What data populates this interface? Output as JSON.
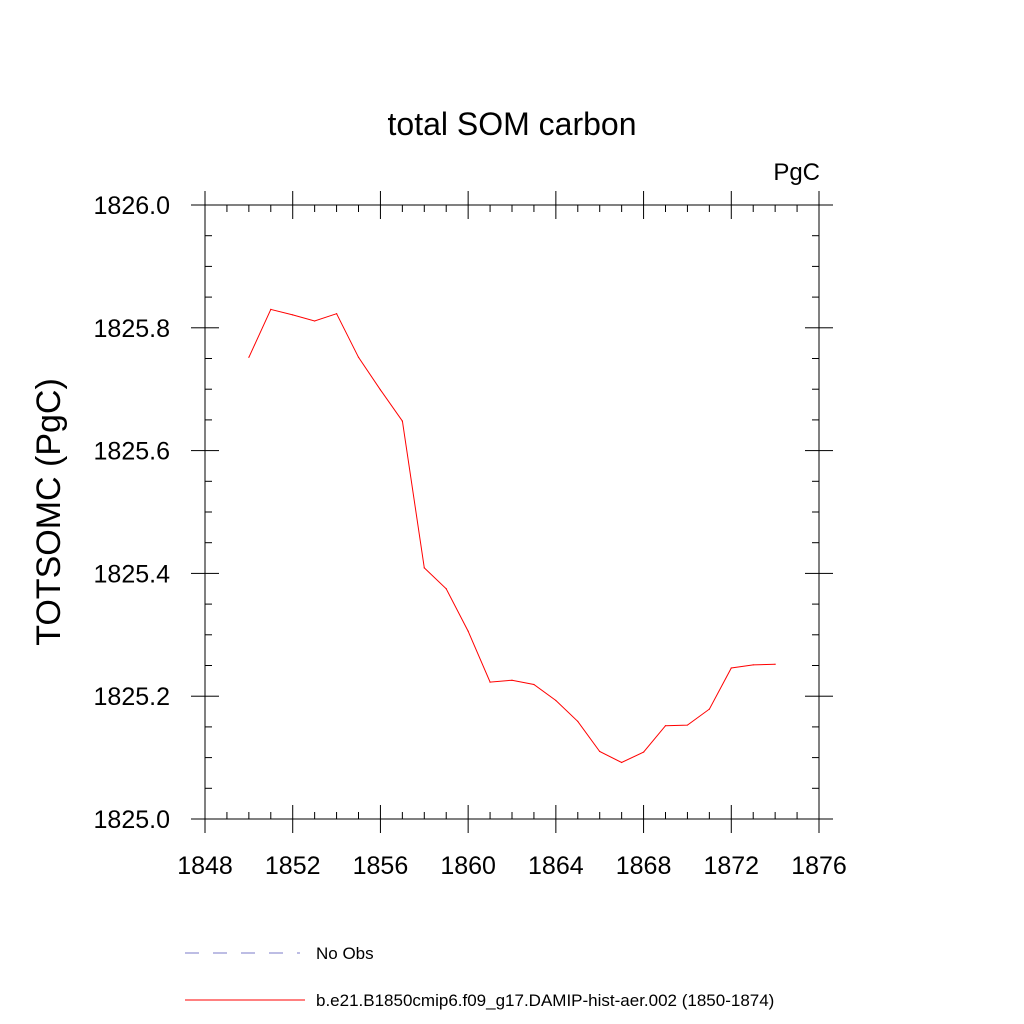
{
  "chart_data": {
    "type": "line",
    "title": "total SOM carbon",
    "units": "PgC",
    "ylabel": "TOTSOMC  (PgC)",
    "xlabel": "",
    "xlim": [
      1848,
      1876
    ],
    "ylim": [
      1825.0,
      1826.0
    ],
    "x_ticks": [
      1848,
      1852,
      1856,
      1860,
      1864,
      1868,
      1872,
      1876
    ],
    "x_tick_labels": [
      "1848",
      "1852",
      "1856",
      "1860",
      "1864",
      "1868",
      "1872",
      "1876"
    ],
    "y_ticks": [
      1825.0,
      1825.2,
      1825.4,
      1825.6,
      1825.8,
      1826.0
    ],
    "y_tick_labels": [
      "1825.0",
      "1825.2",
      "1825.4",
      "1825.6",
      "1825.8",
      "1826.0"
    ],
    "grid": false,
    "series": [
      {
        "name": "b.e21.B1850cmip6.f09_g17.DAMIP-hist-aer.002 (1850-1874)",
        "color": "#ff0000",
        "x": [
          1850,
          1851,
          1852,
          1853,
          1854,
          1855,
          1856,
          1857,
          1858,
          1859,
          1860,
          1861,
          1862,
          1863,
          1864,
          1865,
          1866,
          1867,
          1868,
          1869,
          1870,
          1871,
          1872,
          1873,
          1874
        ],
        "y": [
          1825.752,
          1825.83,
          1825.821,
          1825.811,
          1825.823,
          1825.752,
          1825.699,
          1825.648,
          1825.409,
          1825.375,
          1825.306,
          1825.223,
          1825.226,
          1825.219,
          1825.193,
          1825.159,
          1825.11,
          1825.092,
          1825.109,
          1825.152,
          1825.153,
          1825.179,
          1825.246,
          1825.251,
          1825.252
        ]
      }
    ],
    "legend": {
      "placement": "bottom",
      "entries": [
        {
          "label": "No Obs",
          "color": "#7b7bc8",
          "style": "dashed"
        },
        {
          "label": "b.e21.B1850cmip6.f09_g17.DAMIP-hist-aer.002 (1850-1874)",
          "color": "#ff0000",
          "style": "solid"
        }
      ]
    }
  }
}
